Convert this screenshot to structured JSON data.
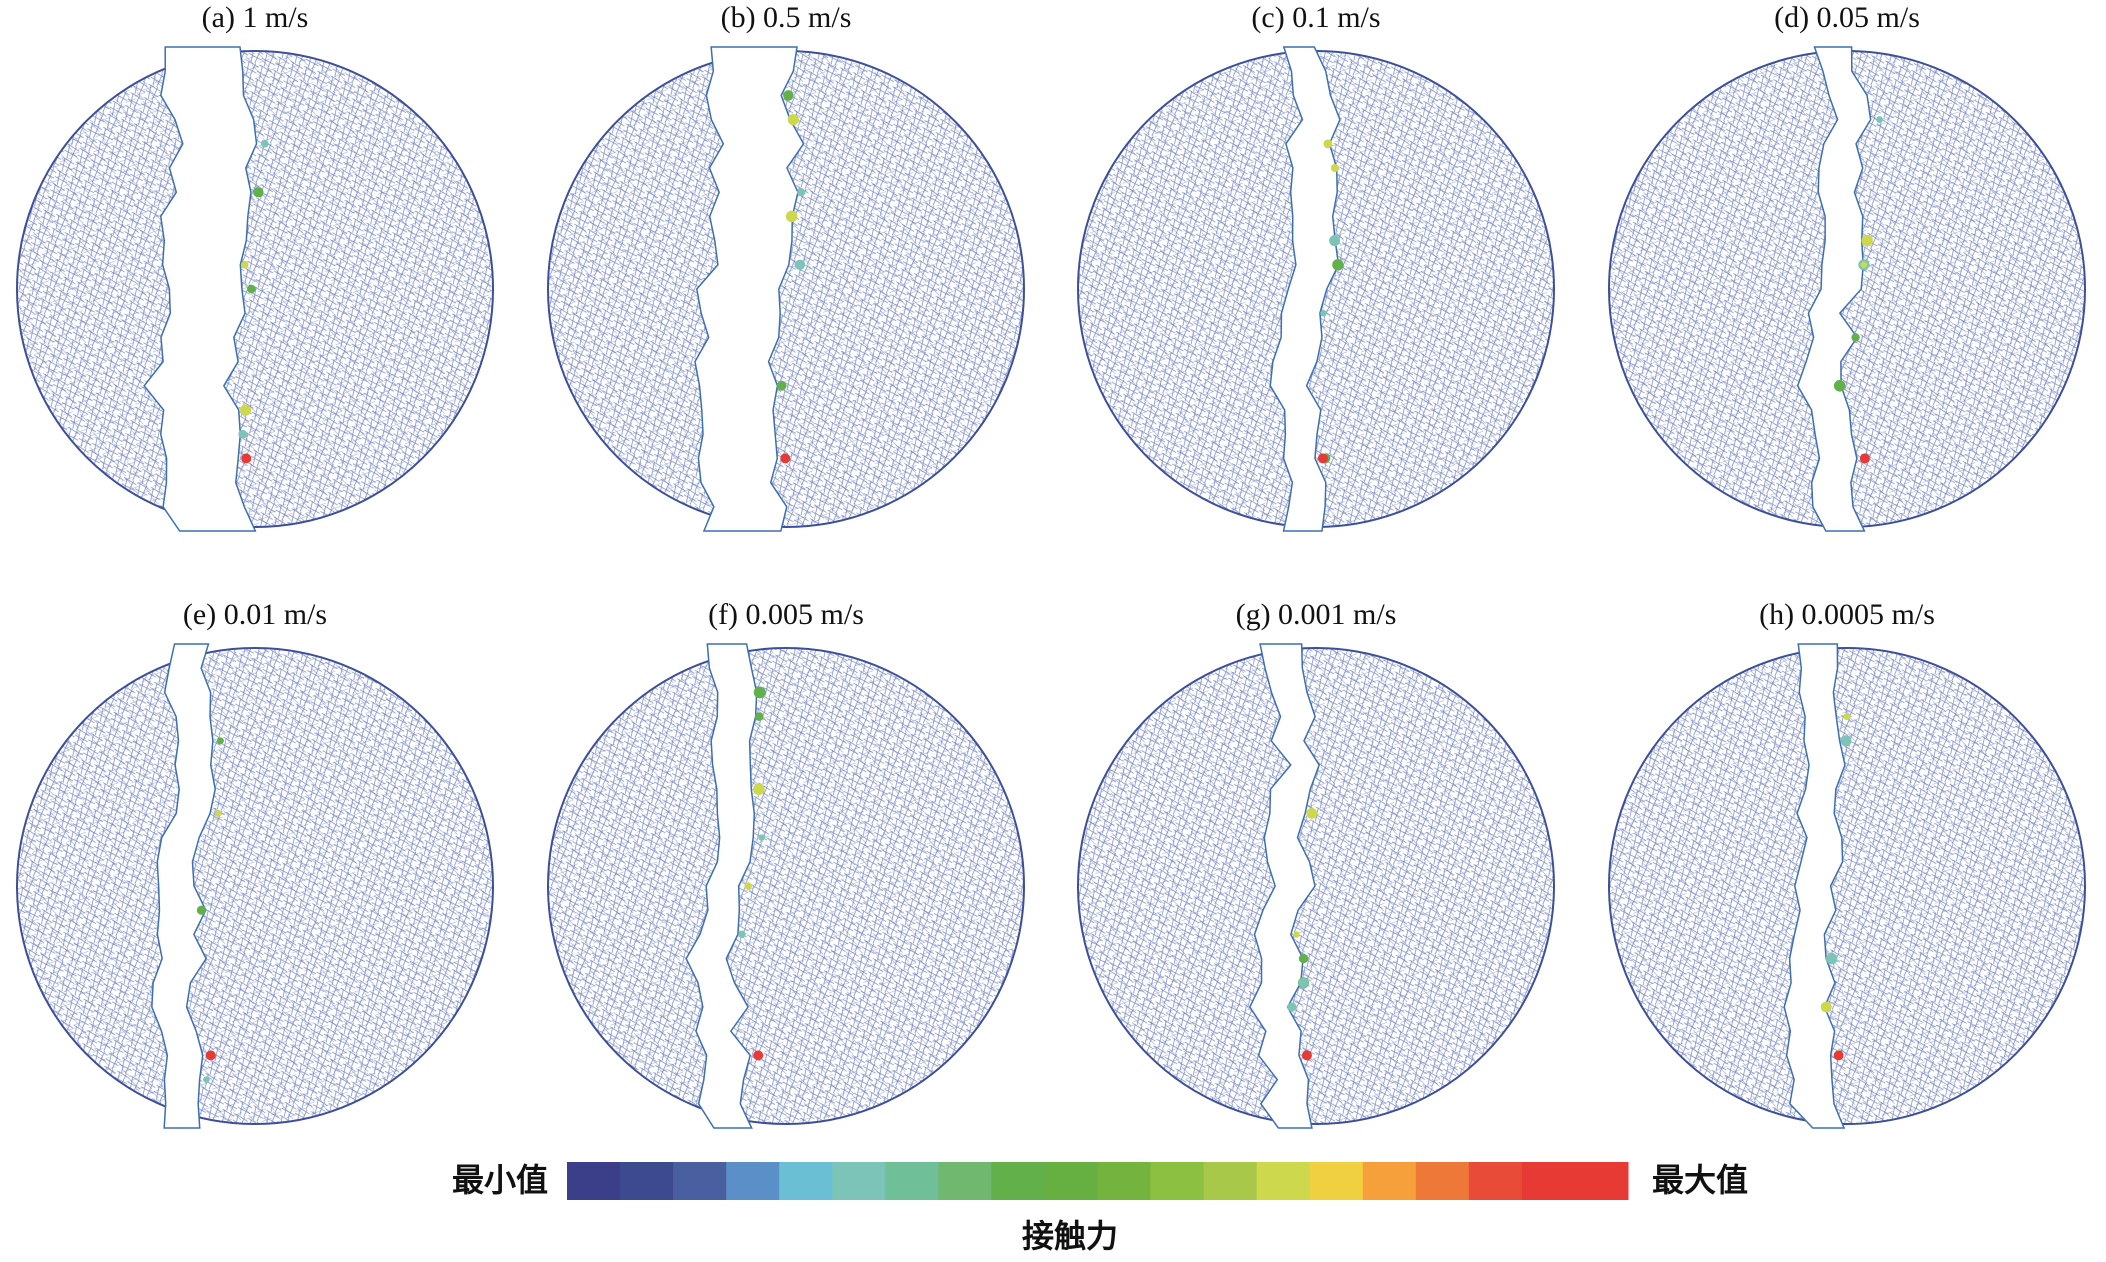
{
  "panels": [
    {
      "label": "(a) 1 m/s"
    },
    {
      "label": "(b) 0.5 m/s"
    },
    {
      "label": "(c) 0.1 m/s"
    },
    {
      "label": "(d) 0.05 m/s"
    },
    {
      "label": "(e) 0.01 m/s"
    },
    {
      "label": "(f) 0.005 m/s"
    },
    {
      "label": "(g) 0.001 m/s"
    },
    {
      "label": "(h) 0.0005 m/s"
    }
  ],
  "colorbar": {
    "min_label": "最小值",
    "max_label": "最大值",
    "title": "接触力",
    "colors": [
      "#3b3f8a",
      "#3d4a8f",
      "#4a5fa0",
      "#5a8fc8",
      "#6bbfd4",
      "#7cc4b8",
      "#6fbf98",
      "#70b870",
      "#62b04a",
      "#66b042",
      "#74b43e",
      "#8cc040",
      "#a8c84a",
      "#cdd84c",
      "#f0d040",
      "#f5a03a",
      "#ee7838",
      "#e84c38",
      "#e83a34",
      "#e83a34"
    ]
  }
}
